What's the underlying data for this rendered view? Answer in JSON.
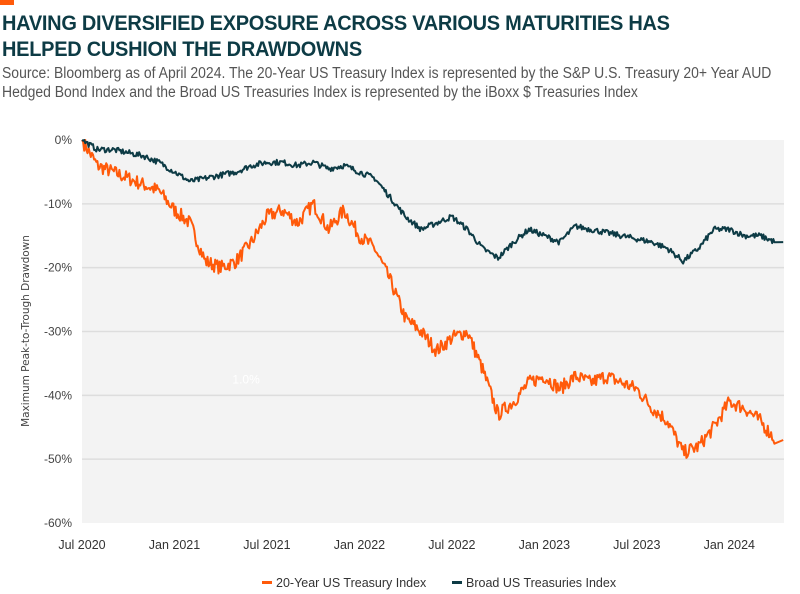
{
  "header": {
    "title": "HAVING DIVERSIFIED EXPOSURE ACROSS VARIOUS MATURITIES HAS HELPED CUSHION THE DRAWDOWNS",
    "subtitle": "Source: Bloomberg as of April 2024. The 20-Year US Treasury Index is represented by the S&P U.S. Treasury 20+ Year AUD Hedged Bond Index and the Broad US Treasuries Index is represented by the iBoxx $ Treasuries Index"
  },
  "colors": {
    "accent": "#ff5a0a",
    "series_20yr": "#ff5a0a",
    "series_broad": "#0d3b45",
    "plot_bg": "#f3f3f3",
    "gridline": "#dddddd"
  },
  "chart_data": {
    "type": "line",
    "title": "HAVING DIVERSIFIED EXPOSURE ACROSS VARIOUS MATURITIES HAS HELPED CUSHION THE DRAWDOWNS",
    "xlabel": "",
    "ylabel": "Maximum Peak-to-Trough Drawdown",
    "ylim": [
      -60,
      0
    ],
    "y_unit": "%",
    "yticks": [
      0,
      -10,
      -20,
      -30,
      -40,
      -50,
      -60
    ],
    "ytick_labels": [
      "0%",
      "-10%",
      "-20%",
      "-30%",
      "-40%",
      "-50%",
      "-60%"
    ],
    "xlim": [
      "2020-07",
      "2024-04"
    ],
    "xticks": [
      "2020-07",
      "2021-01",
      "2021-07",
      "2022-01",
      "2022-07",
      "2023-01",
      "2023-07",
      "2024-01"
    ],
    "xtick_labels": [
      "Jul 2020",
      "Jan 2021",
      "Jul 2021",
      "Jan 2022",
      "Jul 2022",
      "Jan 2023",
      "Jul 2023",
      "Jan 2024"
    ],
    "grid": true,
    "legend_position": "bottom-center",
    "annotations": [
      {
        "text": "1.0%",
        "x": "2021-05",
        "y": -37.5
      }
    ],
    "x": [
      "2020-07",
      "2020-08",
      "2020-09",
      "2020-10",
      "2020-11",
      "2020-12",
      "2021-01",
      "2021-02",
      "2021-03",
      "2021-04",
      "2021-05",
      "2021-06",
      "2021-07",
      "2021-08",
      "2021-09",
      "2021-10",
      "2021-11",
      "2021-12",
      "2022-01",
      "2022-02",
      "2022-03",
      "2022-04",
      "2022-05",
      "2022-06",
      "2022-07",
      "2022-08",
      "2022-09",
      "2022-10",
      "2022-11",
      "2022-12",
      "2023-01",
      "2023-02",
      "2023-03",
      "2023-04",
      "2023-05",
      "2023-06",
      "2023-07",
      "2023-08",
      "2023-09",
      "2023-10",
      "2023-11",
      "2023-12",
      "2024-01",
      "2024-02",
      "2024-03",
      "2024-04"
    ],
    "series": [
      {
        "name": "20-Year US Treasury Index",
        "color": "#ff5a0a",
        "values": [
          0,
          -4,
          -5,
          -6,
          -7,
          -8,
          -11,
          -13,
          -19,
          -20,
          -19,
          -16,
          -12,
          -11,
          -13,
          -10,
          -14,
          -11,
          -15,
          -17,
          -22,
          -28,
          -30,
          -33,
          -31,
          -30,
          -36,
          -43,
          -41,
          -38,
          -37,
          -39,
          -37,
          -38,
          -37,
          -38,
          -39,
          -42,
          -44,
          -49,
          -48,
          -45,
          -41,
          -42,
          -44,
          -47
        ]
      },
      {
        "name": "Broad US Treasuries Index",
        "color": "#0d3b45",
        "values": [
          0,
          -1.5,
          -1.5,
          -2,
          -2.5,
          -3.5,
          -5,
          -6.5,
          -6,
          -5.5,
          -5,
          -4,
          -3.5,
          -3.5,
          -4,
          -3.5,
          -4.5,
          -4,
          -5,
          -6,
          -9,
          -12,
          -14,
          -13,
          -12,
          -14,
          -17,
          -18.5,
          -16,
          -14,
          -15,
          -16,
          -13.5,
          -14,
          -14.5,
          -15,
          -15.5,
          -16,
          -17,
          -19,
          -17,
          -14,
          -14,
          -15,
          -15,
          -16
        ]
      }
    ]
  },
  "legend": {
    "items": [
      {
        "label": "20-Year US Treasury Index"
      },
      {
        "label": "Broad US Treasuries Index"
      }
    ]
  }
}
